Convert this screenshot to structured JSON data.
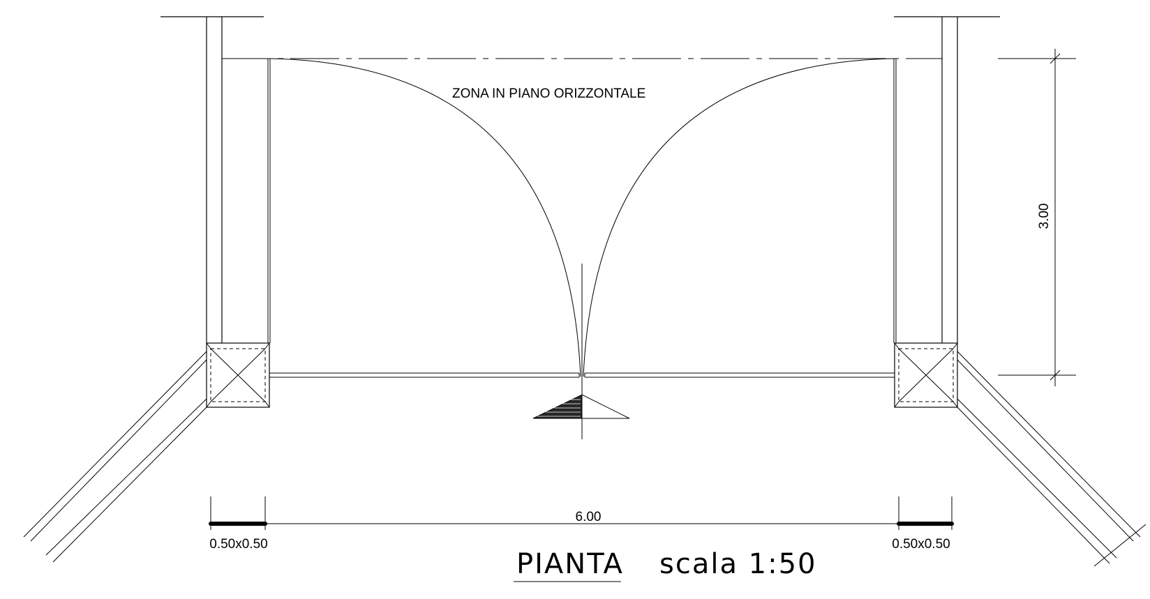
{
  "zone_label": "ZONA IN PIANO ORIZZONTALE",
  "dimension_height": "3.00",
  "dimension_width": "6.00",
  "pillar_left_size": "0.50x0.50",
  "pillar_right_size": "0.50x0.50",
  "title": "PIANTA",
  "scale_label": "scala 1:50"
}
